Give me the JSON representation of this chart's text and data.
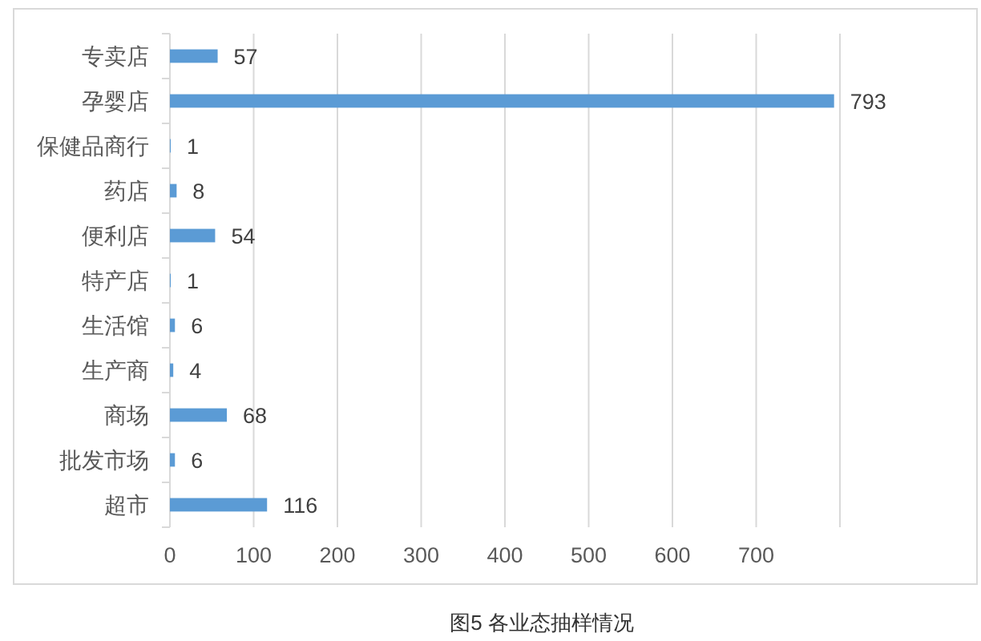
{
  "chart_data": {
    "type": "bar",
    "orientation": "horizontal",
    "categories": [
      "专卖店",
      "孕婴店",
      "保健品商行",
      "药店",
      "便利店",
      "特产店",
      "生活馆",
      "生产商",
      "商场",
      "批发市场",
      "超市"
    ],
    "values": [
      57,
      793,
      1,
      8,
      54,
      1,
      6,
      4,
      68,
      6,
      116
    ],
    "color": "#5b9bd5",
    "xlim": [
      0,
      800
    ],
    "xticks": [
      0,
      100,
      200,
      300,
      400,
      500,
      600,
      700,
      {
        "value": 800,
        "label": null
      }
    ],
    "grid": "x",
    "data_labels": true,
    "annotations": [
      "图5 各业态抽样情况"
    ]
  }
}
